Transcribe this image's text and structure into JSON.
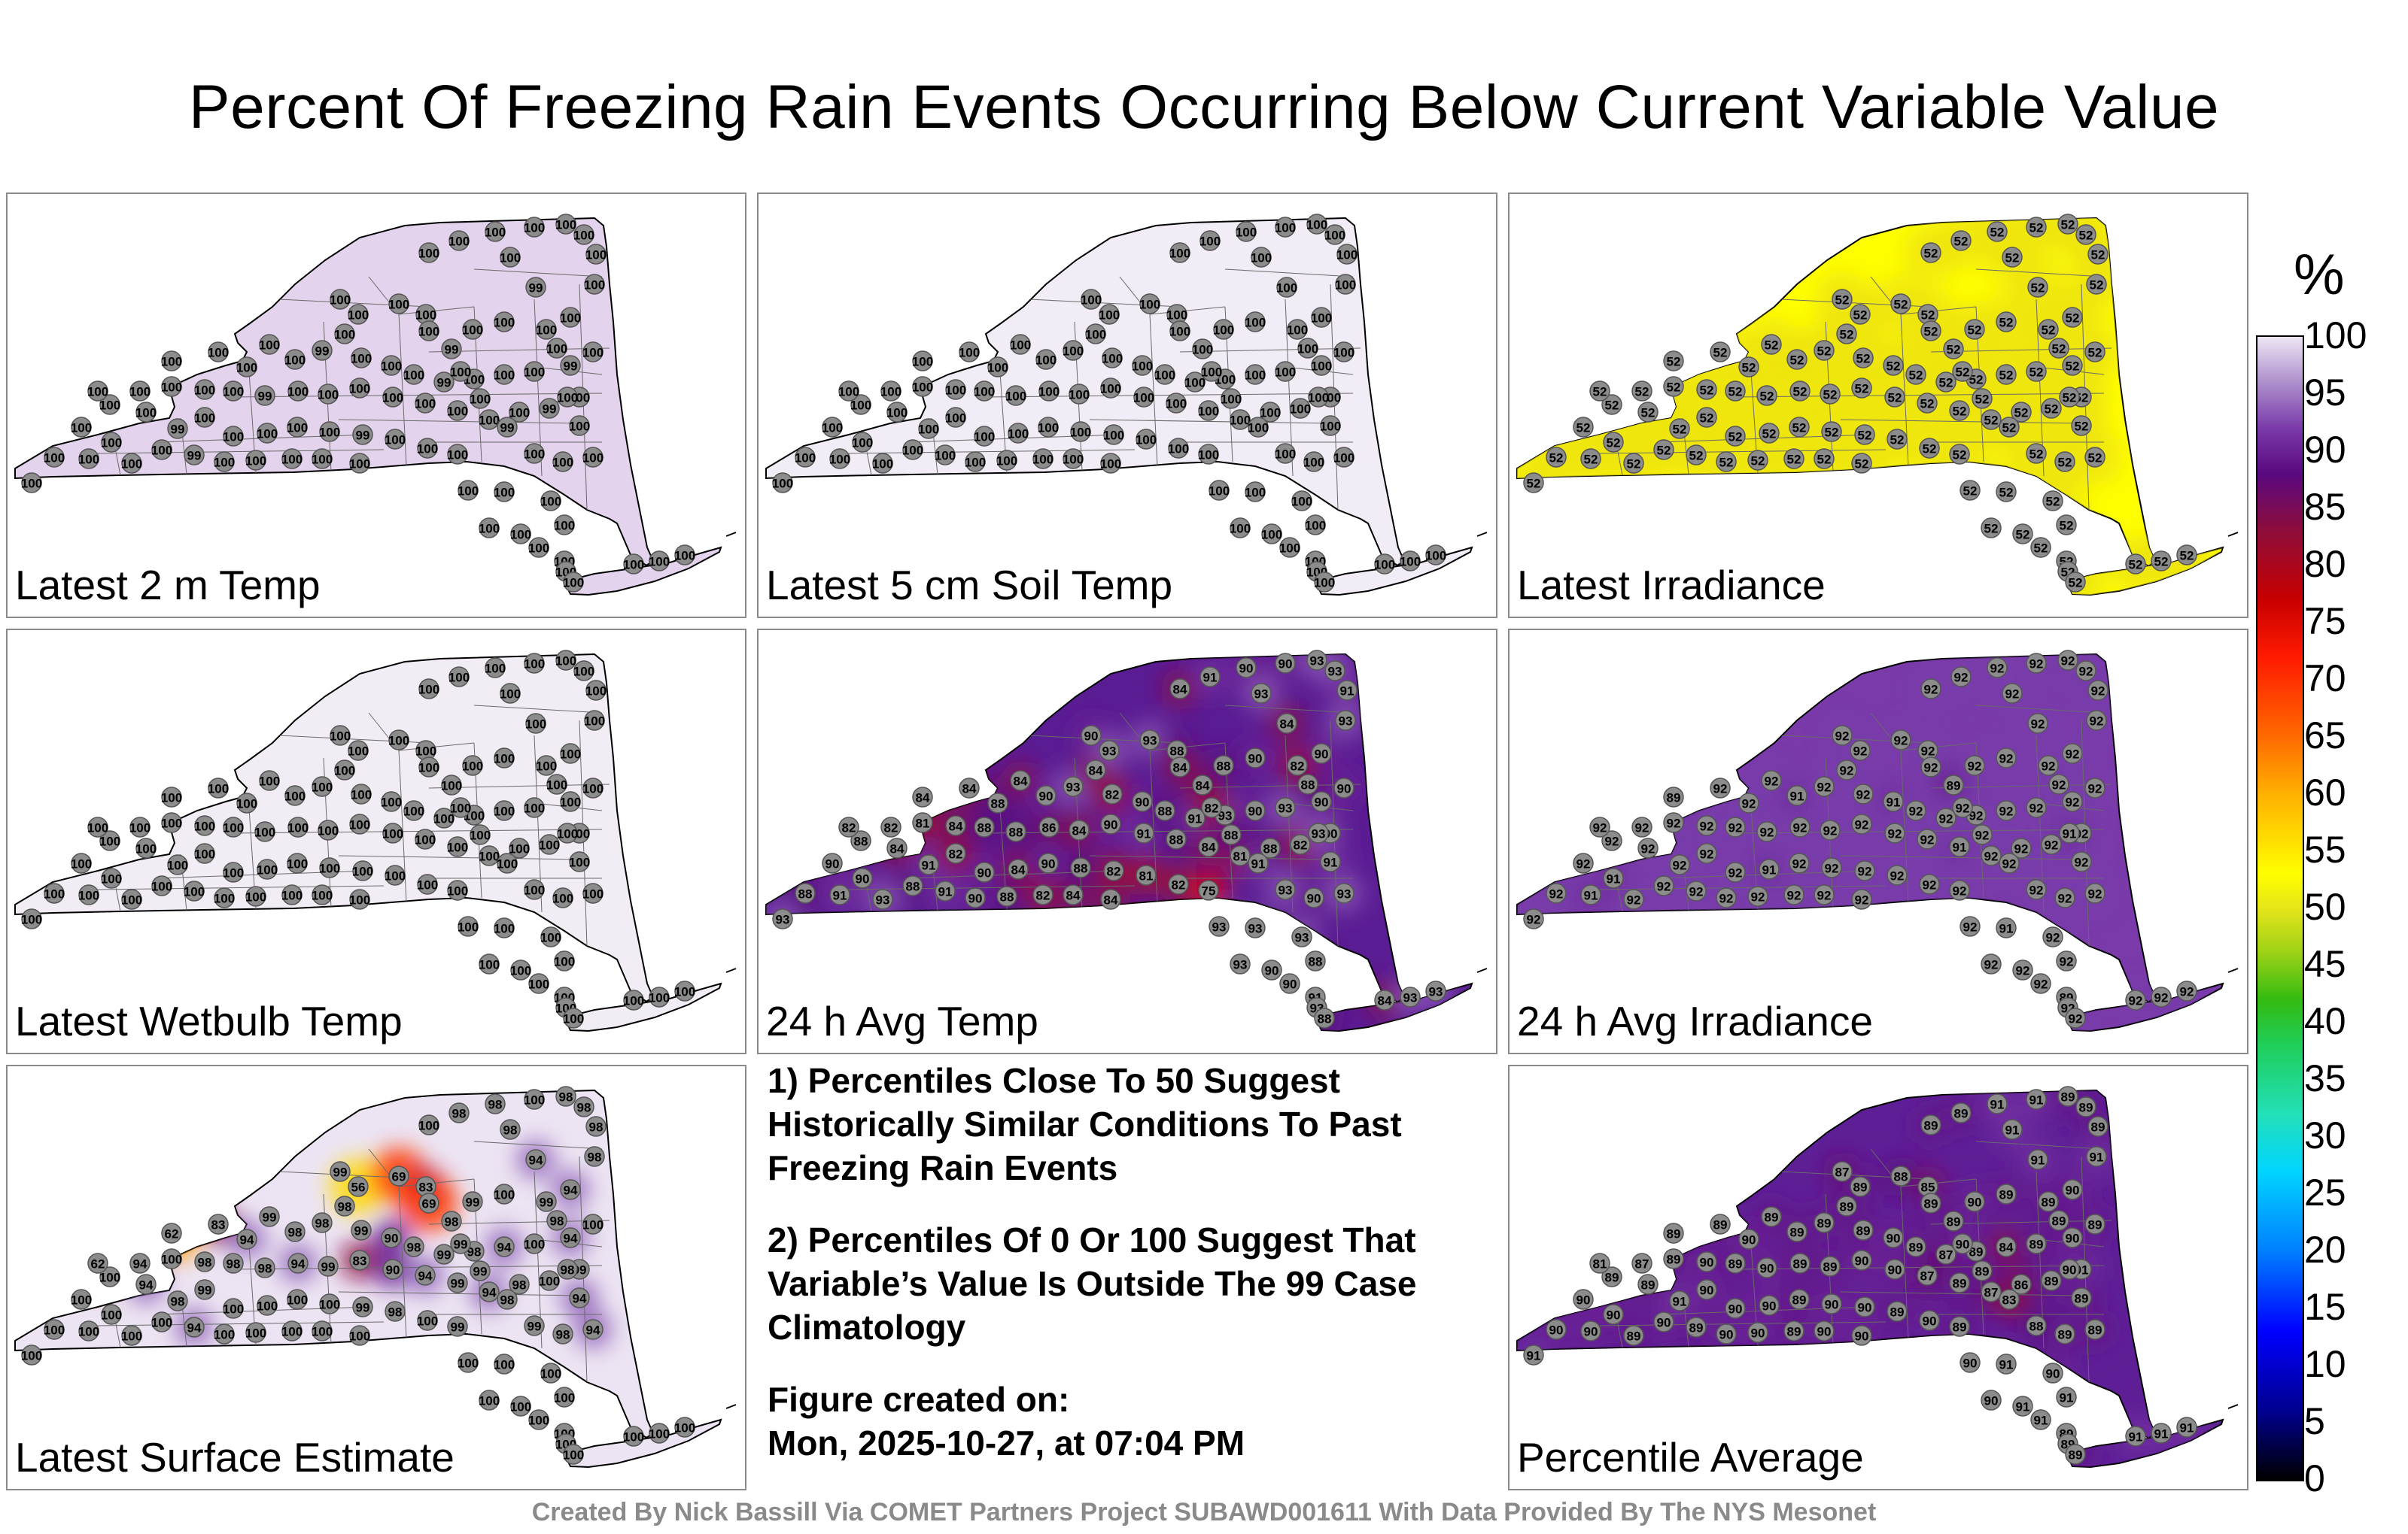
{
  "title": "Percent Of Freezing Rain Events Occurring Below Current Variable Value",
  "panels": [
    {
      "label": "Latest 2 m Temp",
      "fill": "#e3d3ed",
      "values": [
        100,
        100,
        100,
        100,
        100,
        100,
        99,
        100,
        100,
        100,
        100,
        100,
        100,
        100,
        100,
        99,
        100,
        100,
        100,
        100,
        100,
        99,
        100,
        100,
        100,
        100,
        100,
        100,
        100,
        100,
        99,
        100,
        100,
        100,
        100,
        100,
        100,
        100,
        100,
        99,
        100,
        100,
        100,
        100,
        100,
        100,
        99,
        100,
        100,
        100,
        100,
        99,
        100,
        100,
        100,
        99,
        100,
        100,
        100,
        100,
        100,
        99,
        100,
        100,
        99,
        100,
        100,
        100,
        100,
        100,
        100,
        100,
        99,
        100,
        100,
        100,
        100,
        100,
        100,
        100,
        100,
        100,
        100,
        100,
        100,
        100,
        100,
        100,
        100,
        100,
        100,
        100,
        100,
        100,
        100,
        100,
        100,
        100,
        100
      ]
    },
    {
      "label": "Latest 5 cm Soil Temp",
      "fill": "#f1ecf5",
      "values": [
        100,
        100,
        100,
        100,
        100,
        100,
        100,
        100,
        100,
        100,
        100,
        100,
        100,
        100,
        100,
        100,
        100,
        100,
        100,
        100,
        100,
        100,
        100,
        100,
        100,
        100,
        100,
        100,
        100,
        100,
        100,
        100,
        100,
        100,
        100,
        100,
        100,
        100,
        100,
        100,
        100,
        100,
        100,
        100,
        100,
        100,
        100,
        100,
        100,
        100,
        100,
        100,
        100,
        100,
        100,
        100,
        100,
        100,
        100,
        100,
        100,
        100,
        100,
        100,
        100,
        100,
        100,
        100,
        100,
        100,
        100,
        100,
        100,
        100,
        100,
        100,
        100,
        100,
        100,
        100,
        100,
        100,
        100,
        100,
        100,
        100,
        100,
        100,
        100,
        100,
        100,
        100,
        100,
        100,
        100,
        100,
        100,
        100,
        100
      ]
    },
    {
      "label": "Latest Irradiance",
      "fill": "#ffff00",
      "values": [
        52,
        52,
        52,
        52,
        52,
        52,
        52,
        52,
        52,
        52,
        52,
        52,
        52,
        52,
        52,
        52,
        52,
        52,
        52,
        52,
        52,
        52,
        52,
        52,
        52,
        52,
        52,
        52,
        52,
        52,
        52,
        52,
        52,
        52,
        52,
        52,
        52,
        52,
        52,
        52,
        52,
        52,
        52,
        52,
        52,
        52,
        52,
        52,
        52,
        52,
        52,
        52,
        52,
        52,
        52,
        52,
        52,
        52,
        52,
        52,
        52,
        52,
        52,
        52,
        52,
        52,
        52,
        52,
        52,
        52,
        52,
        52,
        52,
        52,
        52,
        52,
        52,
        52,
        52,
        52,
        52,
        52,
        52,
        52,
        52,
        52,
        52,
        52,
        52,
        52,
        52,
        52,
        52,
        52,
        52,
        52,
        52,
        52,
        52
      ]
    },
    {
      "label": "Latest Wetbulb Temp",
      "fill": "#f2edf5",
      "values": [
        100,
        100,
        100,
        100,
        100,
        100,
        100,
        100,
        100,
        100,
        100,
        100,
        100,
        100,
        100,
        100,
        100,
        100,
        100,
        100,
        100,
        100,
        100,
        100,
        100,
        100,
        100,
        100,
        100,
        100,
        100,
        100,
        100,
        100,
        100,
        100,
        100,
        100,
        100,
        100,
        100,
        100,
        100,
        100,
        100,
        100,
        100,
        100,
        100,
        100,
        100,
        100,
        100,
        100,
        100,
        100,
        100,
        100,
        100,
        100,
        100,
        100,
        100,
        100,
        100,
        100,
        100,
        100,
        100,
        100,
        100,
        100,
        100,
        100,
        100,
        100,
        100,
        100,
        100,
        100,
        100,
        100,
        100,
        100,
        100,
        100,
        100,
        100,
        100,
        100,
        100,
        100,
        100,
        100,
        100,
        100,
        100,
        100,
        100
      ]
    },
    {
      "label": "24 h Avg Temp",
      "fill": "#5a1c93",
      "values": [
        93,
        88,
        90,
        91,
        88,
        93,
        91,
        90,
        88,
        82,
        84,
        84,
        90,
        88,
        84,
        91,
        82,
        90,
        84,
        90,
        88,
        82,
        81,
        82,
        75,
        82,
        82,
        81,
        84,
        88,
        88,
        86,
        84,
        90,
        91,
        88,
        84,
        81,
        88,
        82,
        90,
        84,
        84,
        88,
        84,
        90,
        93,
        84,
        82,
        90,
        88,
        91,
        93,
        90,
        93,
        90,
        90,
        93,
        93,
        88,
        84,
        84,
        82,
        88,
        91,
        93,
        90,
        93,
        91,
        93,
        88,
        90,
        84,
        82,
        90,
        88,
        84,
        91,
        90,
        93,
        90,
        93,
        93,
        91,
        93,
        93,
        93,
        93,
        93,
        90,
        88,
        90,
        91,
        93,
        88,
        84,
        93,
        93,
        90
      ]
    },
    {
      "label": "24 h Avg Irradiance",
      "fill": "#7a3aaa",
      "values": [
        92,
        92,
        91,
        91,
        92,
        92,
        92,
        92,
        92,
        92,
        92,
        92,
        92,
        92,
        92,
        92,
        92,
        92,
        91,
        92,
        92,
        92,
        92,
        92,
        92,
        92,
        92,
        92,
        92,
        92,
        92,
        92,
        92,
        92,
        92,
        92,
        91,
        92,
        92,
        92,
        92,
        89,
        92,
        92,
        92,
        91,
        92,
        92,
        92,
        91,
        92,
        92,
        92,
        92,
        92,
        92,
        92,
        92,
        92,
        92,
        92,
        89,
        92,
        92,
        92,
        92,
        92,
        92,
        92,
        91,
        92,
        92,
        92,
        92,
        92,
        92,
        92,
        92,
        92,
        92,
        92,
        92,
        92,
        92,
        92,
        92,
        91,
        92,
        92,
        92,
        92,
        92,
        89,
        92,
        92,
        92,
        92,
        92,
        92
      ]
    },
    {
      "label": "Latest Surface Estimate",
      "fill": "#ece4f2",
      "values": [
        100,
        100,
        100,
        100,
        100,
        100,
        94,
        100,
        100,
        100,
        100,
        100,
        100,
        100,
        94,
        98,
        99,
        100,
        100,
        100,
        100,
        99,
        98,
        100,
        99,
        62,
        94,
        100,
        98,
        98,
        98,
        94,
        99,
        83,
        90,
        94,
        99,
        94,
        98,
        100,
        99,
        62,
        83,
        94,
        99,
        98,
        98,
        98,
        99,
        90,
        98,
        99,
        98,
        94,
        100,
        94,
        99,
        56,
        69,
        83,
        69,
        98,
        99,
        99,
        98,
        99,
        98,
        94,
        94,
        98,
        98,
        94,
        94,
        99,
        100,
        99,
        100,
        98,
        98,
        98,
        100,
        98,
        98,
        98,
        98,
        100,
        100,
        100,
        100,
        100,
        100,
        100,
        100,
        100,
        100,
        100,
        100,
        100,
        100
      ]
    },
    {
      "label": "Percentile Average",
      "fill": "#5e1f96",
      "values": [
        91,
        90,
        90,
        90,
        90,
        89,
        89,
        90,
        90,
        89,
        90,
        90,
        90,
        89,
        89,
        91,
        90,
        90,
        90,
        89,
        90,
        90,
        89,
        90,
        89,
        81,
        87,
        89,
        90,
        89,
        90,
        89,
        89,
        90,
        90,
        87,
        89,
        87,
        86,
        89,
        91,
        89,
        89,
        90,
        89,
        89,
        89,
        89,
        89,
        90,
        89,
        87,
        89,
        84,
        89,
        90,
        87,
        89,
        88,
        85,
        89,
        89,
        90,
        89,
        83,
        88,
        89,
        89,
        89,
        90,
        89,
        90,
        91,
        89,
        89,
        90,
        89,
        89,
        91,
        91,
        91,
        89,
        89,
        89,
        91,
        90,
        91,
        90,
        90,
        91,
        91,
        91,
        89,
        89,
        89,
        91,
        91,
        91,
        89
      ]
    }
  ],
  "notes": {
    "note1": "1) Percentiles Close To 50 Suggest Historically Similar Conditions To Past Freezing Rain Events",
    "note2": "2) Percentiles Of 0 Or 100 Suggest That Variable’s Value Is Outside The 99 Case Climatology",
    "created_label": "Figure created on:",
    "created_date": "Mon, 2025-10-27, at 07:04 PM"
  },
  "colorbar": {
    "unit": "%",
    "ticks": [
      0,
      5,
      10,
      15,
      20,
      25,
      30,
      35,
      40,
      45,
      50,
      55,
      60,
      65,
      70,
      75,
      80,
      85,
      90,
      95,
      100
    ]
  },
  "footer": "Created By Nick Bassill Via COMET Partners Project SUBAWD001611 With Data Provided By The NYS Mesonet"
}
